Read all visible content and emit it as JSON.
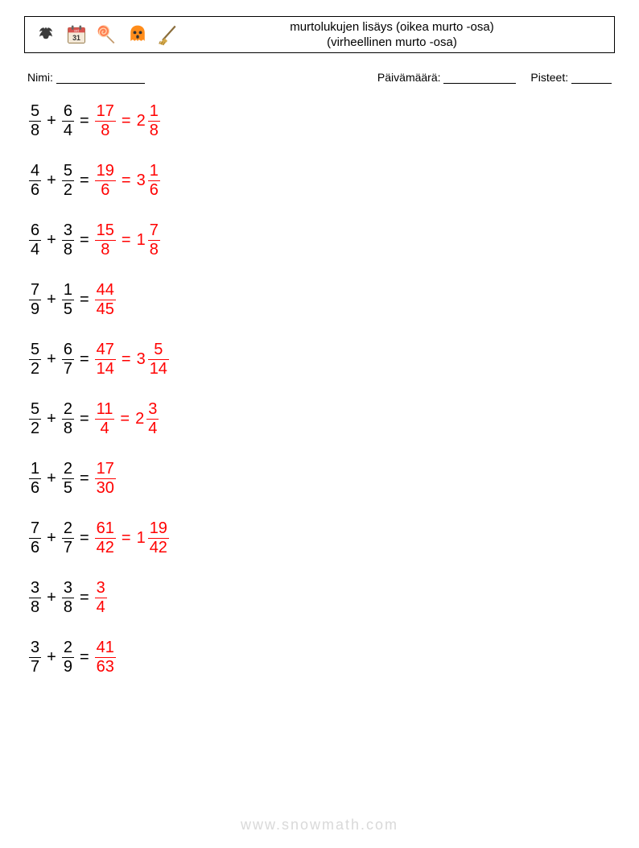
{
  "header": {
    "title_line1": "murtolukujen lisäys (oikea murto -osa)",
    "title_line2": "(virheellinen murto -osa)",
    "icons": [
      "bat",
      "calendar",
      "lollipop",
      "ghost",
      "broom"
    ]
  },
  "info": {
    "name_label": "Nimi:",
    "date_label": "Päivämäärä:",
    "score_label": "Pisteet:",
    "name_blank_width": 110,
    "date_blank_width": 90,
    "score_blank_width": 50
  },
  "colors": {
    "text": "#000000",
    "answer": "#ff0000",
    "border": "#000000",
    "watermark": "#d9d9d9",
    "background": "#ffffff"
  },
  "problems": [
    {
      "a": {
        "n": "5",
        "d": "8"
      },
      "b": {
        "n": "6",
        "d": "4"
      },
      "ans_frac": {
        "n": "17",
        "d": "8"
      },
      "ans_mixed": {
        "w": "2",
        "n": "1",
        "d": "8"
      }
    },
    {
      "a": {
        "n": "4",
        "d": "6"
      },
      "b": {
        "n": "5",
        "d": "2"
      },
      "ans_frac": {
        "n": "19",
        "d": "6"
      },
      "ans_mixed": {
        "w": "3",
        "n": "1",
        "d": "6"
      }
    },
    {
      "a": {
        "n": "6",
        "d": "4"
      },
      "b": {
        "n": "3",
        "d": "8"
      },
      "ans_frac": {
        "n": "15",
        "d": "8"
      },
      "ans_mixed": {
        "w": "1",
        "n": "7",
        "d": "8"
      }
    },
    {
      "a": {
        "n": "7",
        "d": "9"
      },
      "b": {
        "n": "1",
        "d": "5"
      },
      "ans_frac": {
        "n": "44",
        "d": "45"
      }
    },
    {
      "a": {
        "n": "5",
        "d": "2"
      },
      "b": {
        "n": "6",
        "d": "7"
      },
      "ans_frac": {
        "n": "47",
        "d": "14"
      },
      "ans_mixed": {
        "w": "3",
        "n": "5",
        "d": "14"
      }
    },
    {
      "a": {
        "n": "5",
        "d": "2"
      },
      "b": {
        "n": "2",
        "d": "8"
      },
      "ans_frac": {
        "n": "11",
        "d": "4"
      },
      "ans_mixed": {
        "w": "2",
        "n": "3",
        "d": "4"
      }
    },
    {
      "a": {
        "n": "1",
        "d": "6"
      },
      "b": {
        "n": "2",
        "d": "5"
      },
      "ans_frac": {
        "n": "17",
        "d": "30"
      }
    },
    {
      "a": {
        "n": "7",
        "d": "6"
      },
      "b": {
        "n": "2",
        "d": "7"
      },
      "ans_frac": {
        "n": "61",
        "d": "42"
      },
      "ans_mixed": {
        "w": "1",
        "n": "19",
        "d": "42"
      }
    },
    {
      "a": {
        "n": "3",
        "d": "8"
      },
      "b": {
        "n": "3",
        "d": "8"
      },
      "ans_frac": {
        "n": "3",
        "d": "4"
      }
    },
    {
      "a": {
        "n": "3",
        "d": "7"
      },
      "b": {
        "n": "2",
        "d": "9"
      },
      "ans_frac": {
        "n": "41",
        "d": "63"
      }
    }
  ],
  "operator": "+",
  "equals": "=",
  "watermark": "www.snowmath.com"
}
